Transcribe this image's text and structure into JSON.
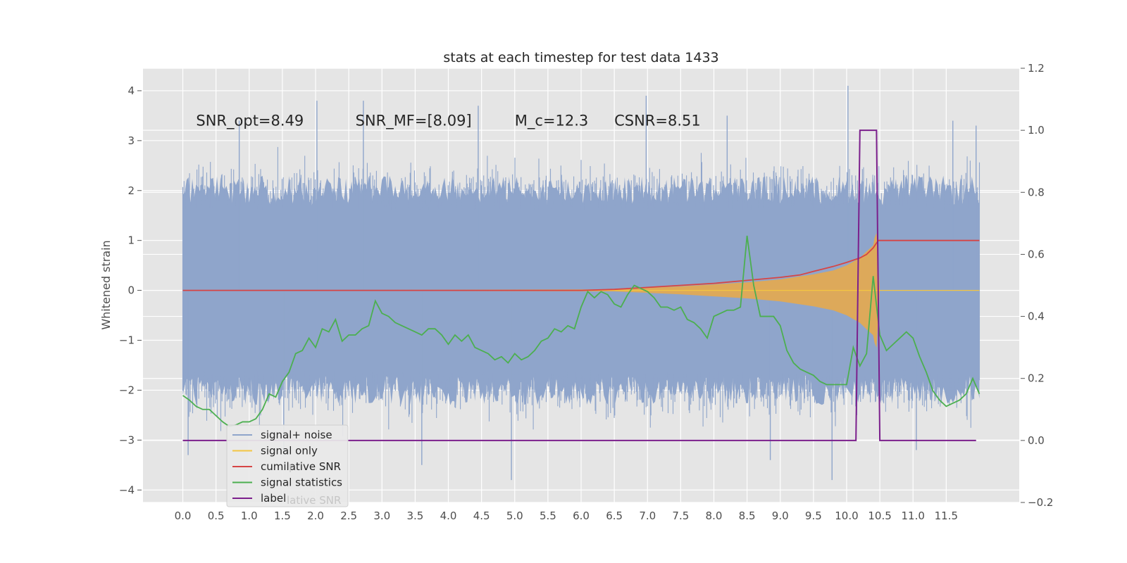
{
  "chart_data": {
    "type": "line",
    "title": "stats at each timestep for test data 1433",
    "ylabel": "Whitened strain",
    "ylabel_right": "",
    "xlim": [
      -0.6,
      12.6
    ],
    "ylim": [
      -4.25,
      4.45
    ],
    "ylim_right": [
      -0.2,
      1.2
    ],
    "x_ticks": [
      0.0,
      0.5,
      1.0,
      1.5,
      2.0,
      2.5,
      3.0,
      3.5,
      4.0,
      4.5,
      5.0,
      5.5,
      6.0,
      6.5,
      7.0,
      7.5,
      8.0,
      8.5,
      9.0,
      9.5,
      10.0,
      10.5,
      11.0,
      11.5
    ],
    "x_tick_labels": [
      "0.0",
      "0.5",
      "1.0",
      "1.5",
      "2.0",
      "2.5",
      "3.0",
      "3.5",
      "4.0",
      "4.5",
      "5.0",
      "5.5",
      "6.0",
      "6.5",
      "7.0",
      "7.5",
      "8.0",
      "8.5",
      "9.0",
      "9.5",
      "10.0",
      "10.5",
      "11.0",
      "11.5"
    ],
    "y_ticks": [
      4,
      3,
      2,
      1,
      0,
      -1,
      -2,
      -3,
      -4
    ],
    "y_tick_labels": [
      "4",
      "3",
      "2",
      "1",
      "0",
      "−1",
      "−2",
      "−3",
      "−4"
    ],
    "y_right_ticks": [
      1.2,
      1.0,
      0.8,
      0.6,
      0.4,
      0.2,
      0.0,
      -0.2
    ],
    "y_right_tick_labels": [
      "1.2",
      "1.0",
      "0.8",
      "0.6",
      "0.4",
      "0.2",
      "0.0",
      "−0.2"
    ],
    "grid": true,
    "legend_position": "lower-left",
    "annotations": [
      {
        "text": "SNR_opt=8.49",
        "x": 0.2,
        "y": 3.3
      },
      {
        "text": "SNR_MF=[8.09]",
        "x": 2.6,
        "y": 3.3
      },
      {
        "text": "M_c=12.3",
        "x": 5.0,
        "y": 3.3
      },
      {
        "text": "CSNR=8.51",
        "x": 6.5,
        "y": 3.3
      }
    ],
    "legend_overlap_text": {
      "ghost1": "l",
      "ghost2": "lative SNR"
    },
    "series": [
      {
        "name": "signal+ noise",
        "color": "#8fa5cb",
        "axis": "left",
        "render": "noise",
        "x_range": [
          0.0,
          12.0
        ],
        "envelope": 2.0,
        "spikes": [
          {
            "x": 0.85,
            "y": 3.4
          },
          {
            "x": 2.02,
            "y": 3.8
          },
          {
            "x": 2.72,
            "y": 3.8
          },
          {
            "x": 4.45,
            "y": 3.7
          },
          {
            "x": 6.98,
            "y": 3.9
          },
          {
            "x": 8.2,
            "y": 3.5
          },
          {
            "x": 10.02,
            "y": 4.1
          },
          {
            "x": 11.6,
            "y": 3.4
          },
          {
            "x": 11.95,
            "y": 3.3
          },
          {
            "x": 0.08,
            "y": -3.3
          },
          {
            "x": 1.52,
            "y": -3.3
          },
          {
            "x": 3.6,
            "y": -3.5
          },
          {
            "x": 4.95,
            "y": -3.8
          },
          {
            "x": 8.85,
            "y": -3.4
          },
          {
            "x": 9.78,
            "y": -3.8
          },
          {
            "x": 11.05,
            "y": -3.2
          }
        ]
      },
      {
        "name": "signal only",
        "color": "#f4c542",
        "axis": "left",
        "x": [
          0,
          6.5,
          7.0,
          7.5,
          8.0,
          8.5,
          9.0,
          9.5,
          9.8,
          10.0,
          10.2,
          10.3,
          10.4,
          10.42,
          10.45,
          10.5,
          12.0
        ],
        "values": [
          0,
          0,
          0,
          0,
          0,
          0,
          0,
          0,
          0,
          0,
          0,
          0,
          0,
          0,
          0,
          0,
          0
        ],
        "envelope": [
          0,
          0.02,
          0.05,
          0.08,
          0.12,
          0.16,
          0.22,
          0.32,
          0.4,
          0.5,
          0.65,
          0.78,
          0.9,
          1.05,
          1.15,
          0,
          0
        ]
      },
      {
        "name": "cumilative SNR",
        "color": "#d64545",
        "axis": "left",
        "x": [
          0,
          6.0,
          6.5,
          7.0,
          7.5,
          8.0,
          8.5,
          9.0,
          9.3,
          9.5,
          9.8,
          10.0,
          10.2,
          10.3,
          10.4,
          10.45,
          10.48,
          12.0
        ],
        "values": [
          0,
          0,
          0.02,
          0.06,
          0.1,
          0.14,
          0.2,
          0.26,
          0.31,
          0.38,
          0.48,
          0.56,
          0.65,
          0.72,
          0.85,
          0.95,
          1.0,
          1.0
        ]
      },
      {
        "name": "signal statistics",
        "color": "#4caf50",
        "axis": "right",
        "x": [
          0.0,
          0.1,
          0.2,
          0.3,
          0.4,
          0.5,
          0.6,
          0.7,
          0.8,
          0.9,
          1.0,
          1.1,
          1.2,
          1.3,
          1.4,
          1.5,
          1.6,
          1.7,
          1.8,
          1.9,
          2.0,
          2.1,
          2.2,
          2.3,
          2.4,
          2.5,
          2.6,
          2.7,
          2.8,
          2.9,
          3.0,
          3.1,
          3.2,
          3.3,
          3.4,
          3.5,
          3.6,
          3.7,
          3.8,
          3.9,
          4.0,
          4.1,
          4.2,
          4.3,
          4.4,
          4.5,
          4.6,
          4.7,
          4.8,
          4.9,
          5.0,
          5.1,
          5.2,
          5.3,
          5.4,
          5.5,
          5.6,
          5.7,
          5.8,
          5.9,
          6.0,
          6.1,
          6.2,
          6.3,
          6.4,
          6.5,
          6.6,
          6.7,
          6.8,
          6.9,
          7.0,
          7.1,
          7.2,
          7.3,
          7.4,
          7.5,
          7.6,
          7.7,
          7.8,
          7.9,
          8.0,
          8.1,
          8.2,
          8.3,
          8.4,
          8.5,
          8.6,
          8.7,
          8.8,
          8.9,
          9.0,
          9.1,
          9.2,
          9.3,
          9.4,
          9.5,
          9.6,
          9.7,
          9.8,
          9.9,
          10.0,
          10.1,
          10.2,
          10.3,
          10.4,
          10.5,
          10.6,
          10.7,
          10.8,
          10.9,
          11.0,
          11.1,
          11.2,
          11.3,
          11.4,
          11.5,
          11.6,
          11.7,
          11.8,
          11.9,
          12.0
        ],
        "values": [
          0.145,
          0.13,
          0.11,
          0.1,
          0.1,
          0.08,
          0.06,
          0.045,
          0.05,
          0.06,
          0.06,
          0.07,
          0.1,
          0.15,
          0.14,
          0.19,
          0.22,
          0.28,
          0.29,
          0.33,
          0.3,
          0.36,
          0.35,
          0.39,
          0.32,
          0.34,
          0.34,
          0.36,
          0.37,
          0.45,
          0.41,
          0.4,
          0.38,
          0.37,
          0.36,
          0.35,
          0.34,
          0.36,
          0.36,
          0.34,
          0.31,
          0.34,
          0.32,
          0.34,
          0.3,
          0.29,
          0.28,
          0.26,
          0.27,
          0.25,
          0.28,
          0.26,
          0.27,
          0.29,
          0.32,
          0.33,
          0.36,
          0.35,
          0.37,
          0.36,
          0.43,
          0.48,
          0.46,
          0.48,
          0.47,
          0.44,
          0.43,
          0.47,
          0.5,
          0.49,
          0.48,
          0.46,
          0.43,
          0.43,
          0.42,
          0.43,
          0.39,
          0.38,
          0.36,
          0.33,
          0.4,
          0.41,
          0.42,
          0.42,
          0.43,
          0.66,
          0.5,
          0.4,
          0.4,
          0.4,
          0.37,
          0.29,
          0.25,
          0.23,
          0.22,
          0.21,
          0.19,
          0.18,
          0.18,
          0.18,
          0.18,
          0.3,
          0.24,
          0.28,
          0.53,
          0.34,
          0.29,
          0.31,
          0.33,
          0.35,
          0.33,
          0.27,
          0.22,
          0.16,
          0.13,
          0.11,
          0.12,
          0.13,
          0.15,
          0.2,
          0.15
        ]
      },
      {
        "name": "label",
        "color": "#7b1f8c",
        "axis": "right",
        "x": [
          0,
          10.14,
          10.2,
          10.45,
          10.5,
          11.95
        ],
        "values": [
          0,
          0,
          1,
          1,
          0,
          0
        ]
      }
    ]
  }
}
